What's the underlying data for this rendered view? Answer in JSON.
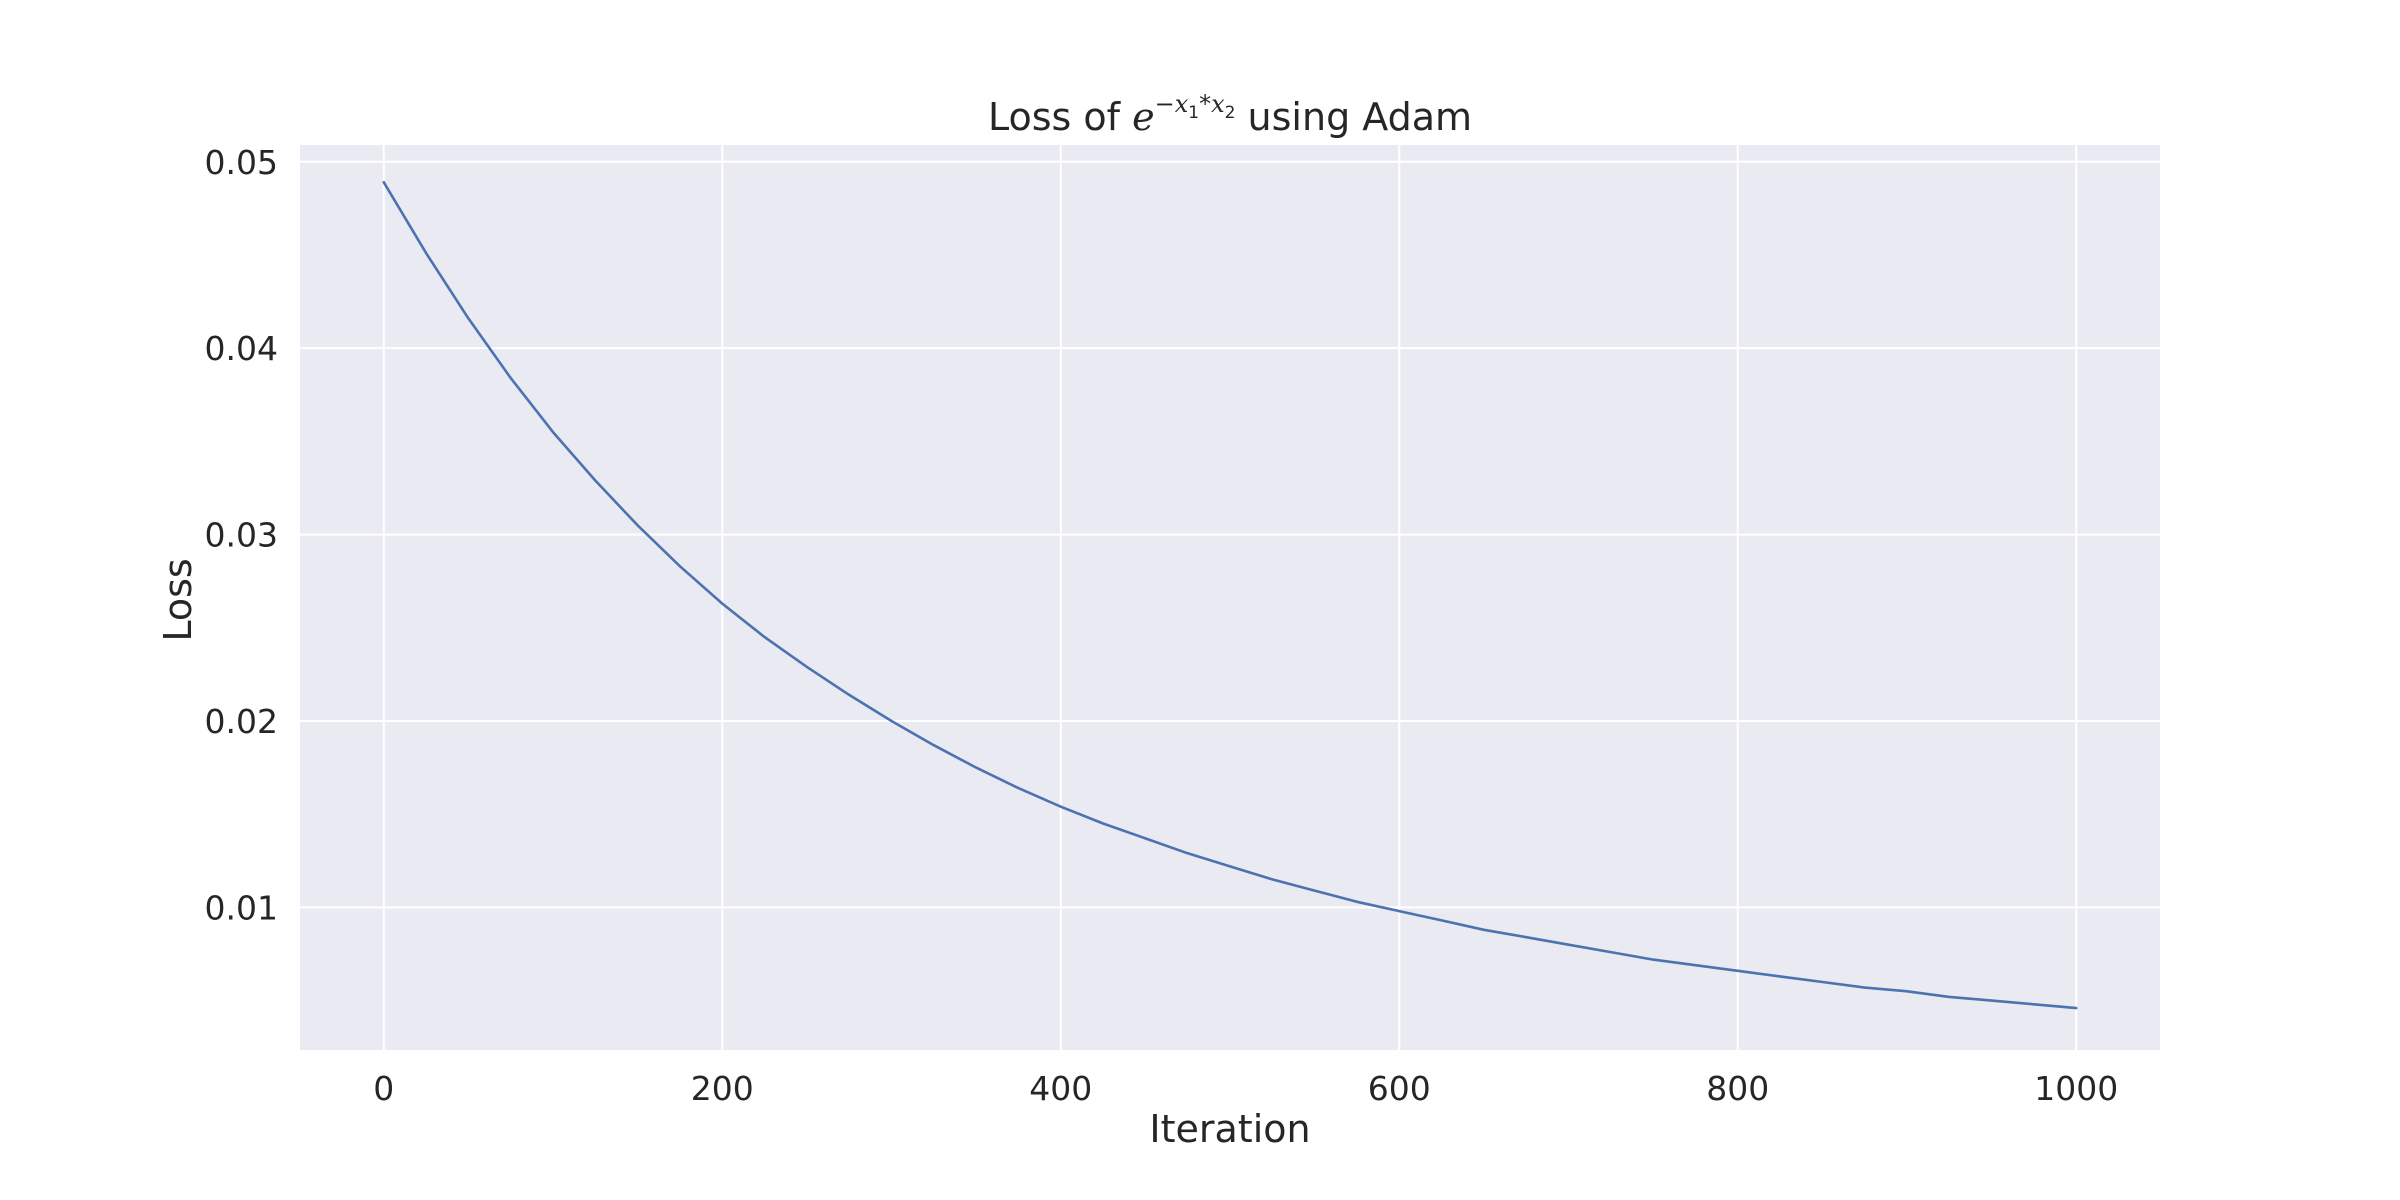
{
  "chart_data": {
    "type": "line",
    "title": {
      "prefix": "Loss of ",
      "math_base": "e",
      "math_exponent": {
        "minus": "−",
        "var1": "x",
        "sub1": "1",
        "op": "*",
        "var2": "x",
        "sub2": "2"
      },
      "suffix": " using Adam"
    },
    "xlabel": "Iteration",
    "ylabel": "Loss",
    "xlim": [
      -49.5,
      1049.5
    ],
    "ylim": [
      0.00235,
      0.0509
    ],
    "xticks": [
      0,
      200,
      400,
      600,
      800,
      1000
    ],
    "xtick_labels": [
      "0",
      "200",
      "400",
      "600",
      "800",
      "1000"
    ],
    "yticks": [
      0.01,
      0.02,
      0.03,
      0.04,
      0.05
    ],
    "ytick_labels": [
      "0.01",
      "0.02",
      "0.03",
      "0.04",
      "0.05"
    ],
    "grid": true,
    "background": "#eaeaf2",
    "grid_color": "#ffffff",
    "series": [
      {
        "color": "#4c72b0",
        "x": [
          0,
          25,
          50,
          75,
          100,
          125,
          150,
          175,
          200,
          225,
          250,
          275,
          300,
          325,
          350,
          375,
          400,
          425,
          450,
          475,
          500,
          525,
          550,
          575,
          600,
          625,
          650,
          675,
          700,
          725,
          750,
          775,
          800,
          825,
          850,
          875,
          900,
          925,
          950,
          975,
          1000
        ],
        "y": [
          0.0489,
          0.0451,
          0.0416,
          0.0384,
          0.0355,
          0.0329,
          0.0305,
          0.0283,
          0.0263,
          0.0245,
          0.0229,
          0.0214,
          0.02,
          0.0187,
          0.0175,
          0.0164,
          0.0154,
          0.0145,
          0.0137,
          0.0129,
          0.0122,
          0.0115,
          0.0109,
          0.0103,
          0.0098,
          0.0093,
          0.0088,
          0.0084,
          0.008,
          0.0076,
          0.0072,
          0.0069,
          0.0066,
          0.0063,
          0.006,
          0.0057,
          0.0055,
          0.0052,
          0.005,
          0.0048,
          0.0046
        ]
      }
    ]
  }
}
